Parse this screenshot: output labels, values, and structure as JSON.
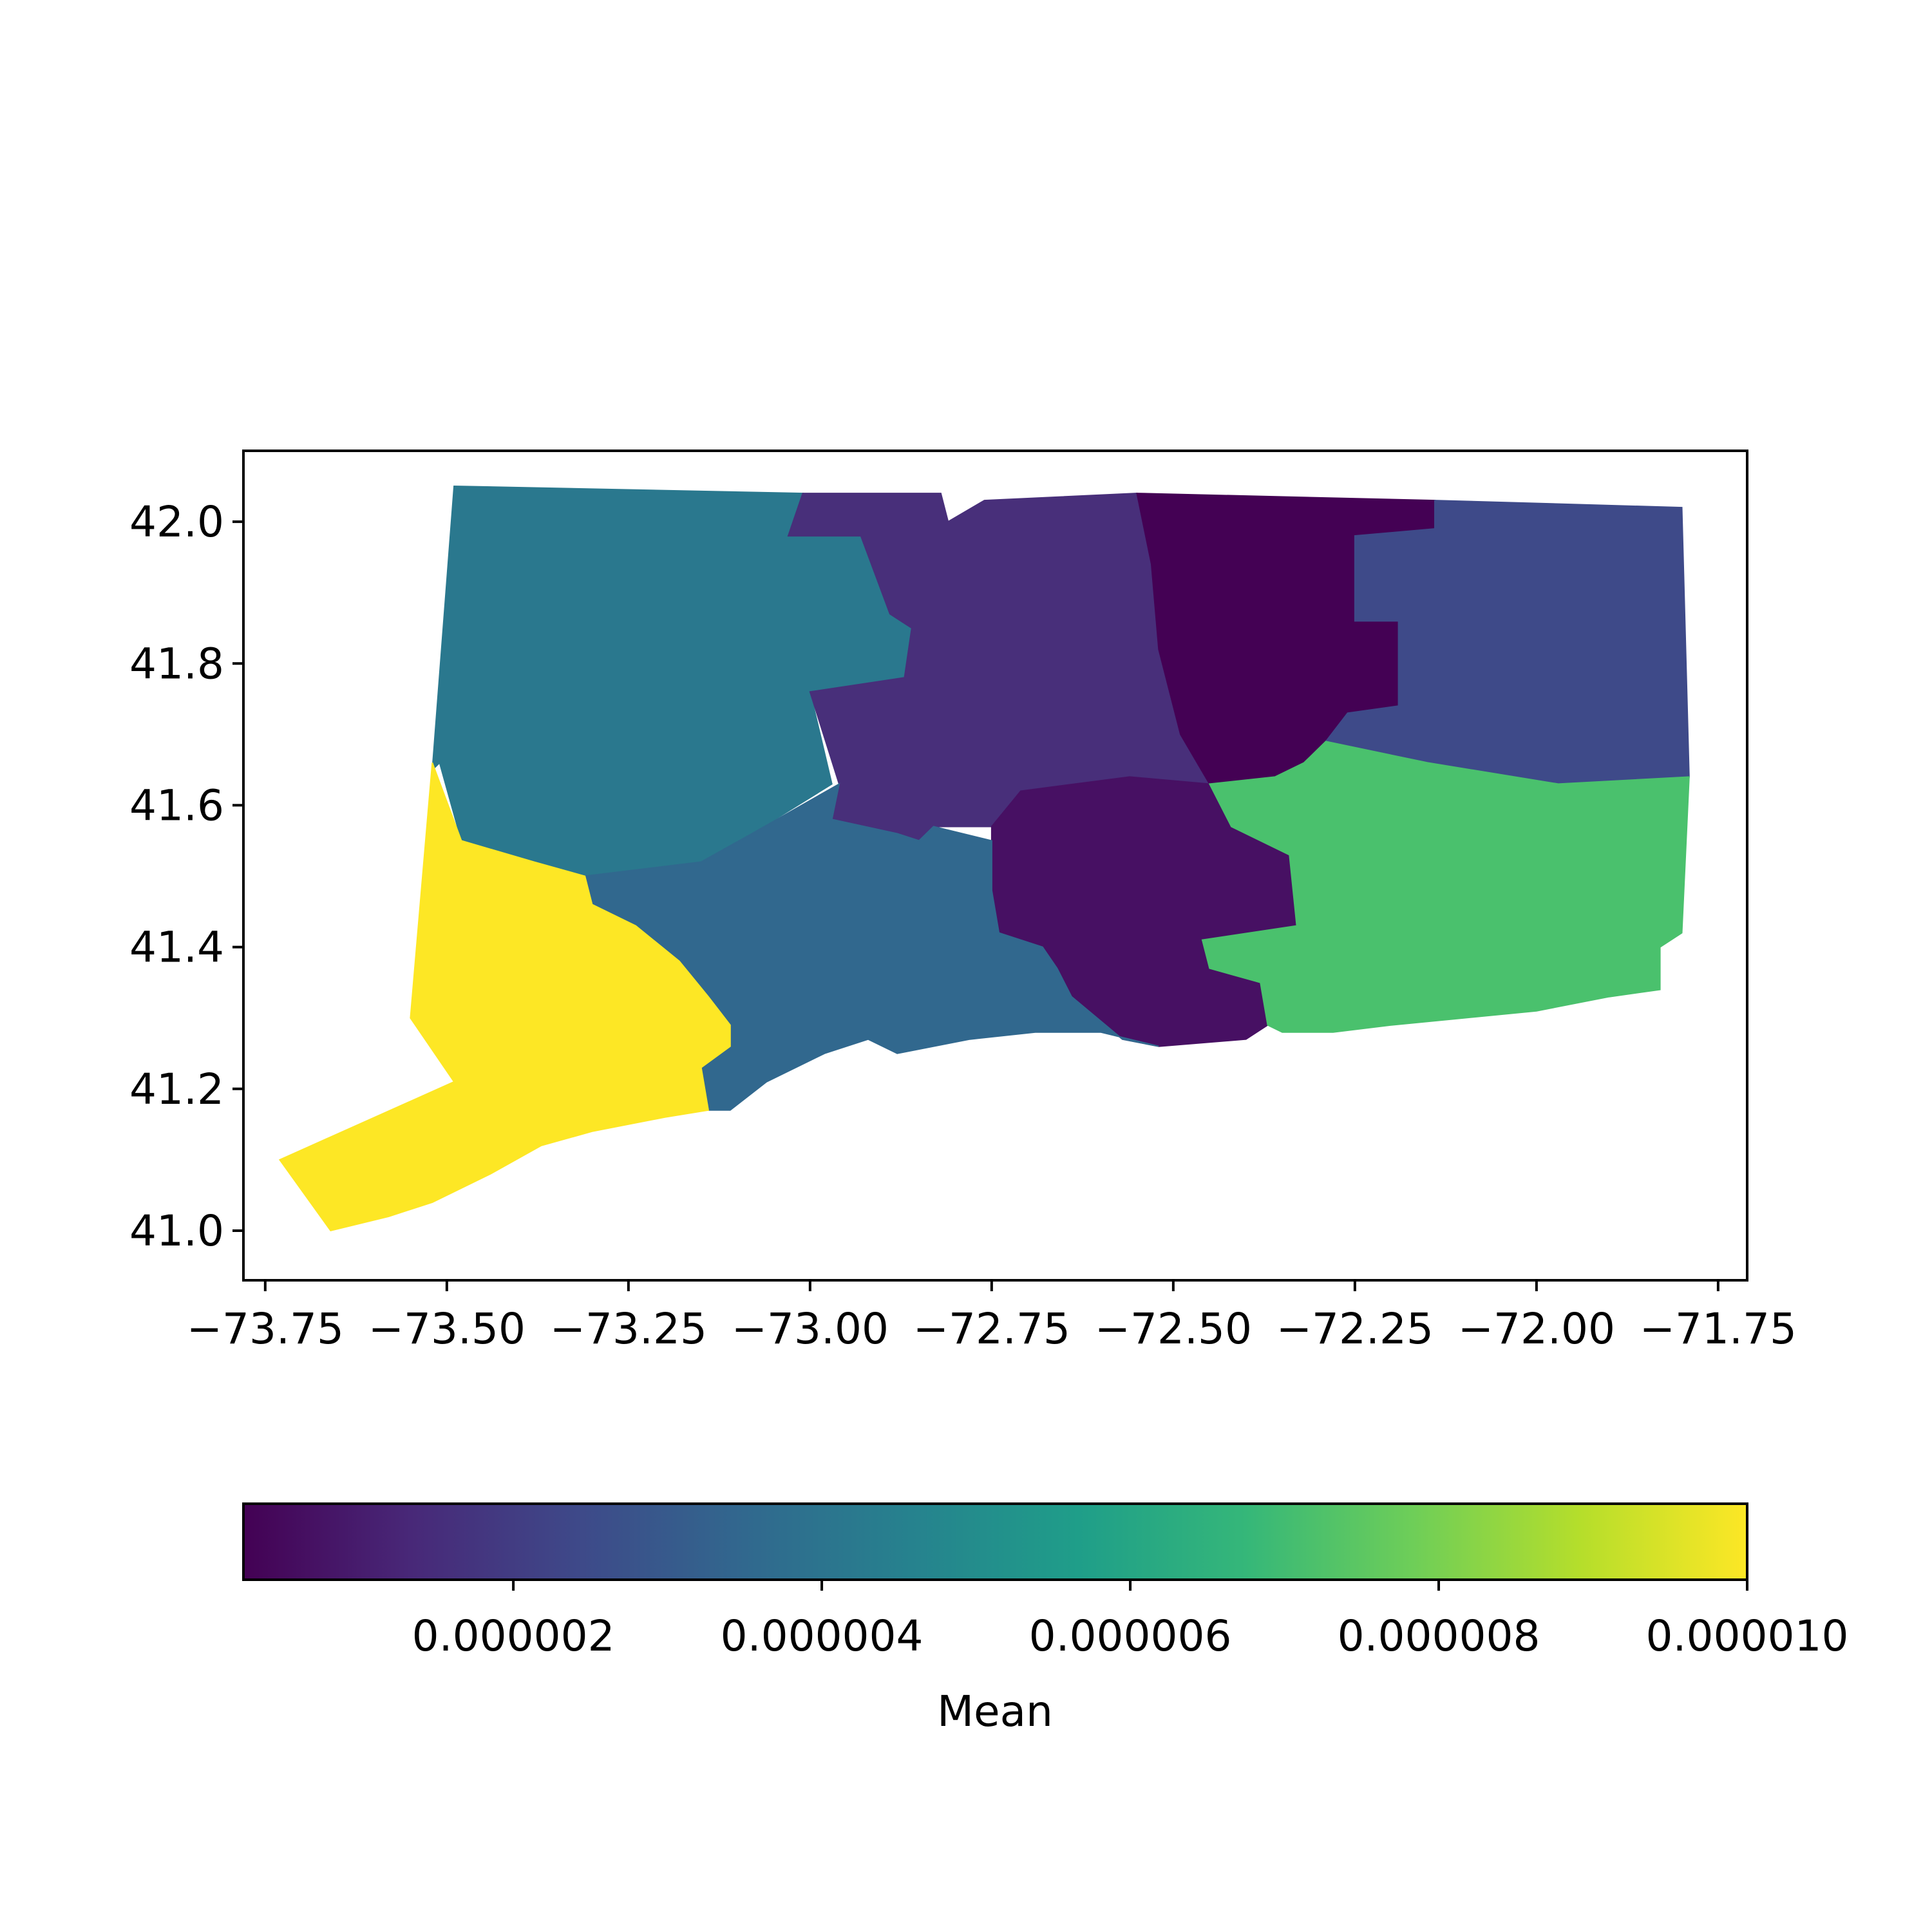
{
  "chart_data": {
    "type": "choropleth",
    "title": "",
    "x_axis": {
      "label": "",
      "range": [
        -73.78,
        -71.71
      ],
      "ticks": [
        -73.75,
        -73.5,
        -73.25,
        -73.0,
        -72.75,
        -72.5,
        -72.25,
        -72.0,
        -71.75
      ],
      "tick_labels": [
        "−73.75",
        "−73.50",
        "−73.25",
        "−73.00",
        "−72.75",
        "−72.50",
        "−72.25",
        "−72.00",
        "−71.75"
      ]
    },
    "y_axis": {
      "label": "",
      "range": [
        40.93,
        42.1
      ],
      "ticks": [
        41.0,
        41.2,
        41.4,
        41.6,
        41.8,
        42.0
      ],
      "tick_labels": [
        "41.0",
        "41.2",
        "41.4",
        "41.6",
        "41.8",
        "42.0"
      ]
    },
    "grid": false,
    "regions": [
      {
        "value": 4e-06,
        "color": "#2a788e",
        "lonlat": [
          [
            -73.49,
            42.05
          ],
          [
            -73.01,
            42.04
          ],
          [
            -73.03,
            41.98
          ],
          [
            -72.93,
            41.98
          ],
          [
            -72.89,
            41.87
          ],
          [
            -72.86,
            41.85
          ],
          [
            -72.87,
            41.78
          ],
          [
            -73.0,
            41.76
          ],
          [
            -72.97,
            41.63
          ],
          [
            -73.08,
            41.56
          ],
          [
            -73.15,
            41.52
          ],
          [
            -73.31,
            41.5
          ],
          [
            -73.38,
            41.52
          ],
          [
            -73.48,
            41.55
          ],
          [
            -73.51,
            41.66
          ],
          [
            -73.52,
            41.65
          ]
        ]
      },
      {
        "value": 2e-06,
        "color": "#482f7a",
        "lonlat": [
          [
            -73.01,
            42.04
          ],
          [
            -72.82,
            42.04
          ],
          [
            -72.81,
            42.0
          ],
          [
            -72.76,
            42.03
          ],
          [
            -72.55,
            42.04
          ],
          [
            -72.53,
            41.94
          ],
          [
            -72.52,
            41.82
          ],
          [
            -72.49,
            41.7
          ],
          [
            -72.45,
            41.63
          ],
          [
            -72.56,
            41.64
          ],
          [
            -72.71,
            41.62
          ],
          [
            -72.75,
            41.57
          ],
          [
            -72.83,
            41.57
          ],
          [
            -72.85,
            41.55
          ],
          [
            -72.88,
            41.56
          ],
          [
            -72.97,
            41.58
          ],
          [
            -72.96,
            41.63
          ],
          [
            -73.0,
            41.76
          ],
          [
            -72.87,
            41.78
          ],
          [
            -72.86,
            41.85
          ],
          [
            -72.89,
            41.87
          ],
          [
            -72.93,
            41.98
          ],
          [
            -73.03,
            41.98
          ]
        ]
      },
      {
        "value": 5e-07,
        "color": "#440154",
        "lonlat": [
          [
            -72.55,
            42.04
          ],
          [
            -72.14,
            42.03
          ],
          [
            -72.14,
            41.99
          ],
          [
            -72.25,
            41.98
          ],
          [
            -72.25,
            41.86
          ],
          [
            -72.19,
            41.86
          ],
          [
            -72.19,
            41.74
          ],
          [
            -72.26,
            41.73
          ],
          [
            -72.29,
            41.69
          ],
          [
            -72.32,
            41.66
          ],
          [
            -72.36,
            41.64
          ],
          [
            -72.38,
            41.62
          ],
          [
            -72.4,
            41.59
          ],
          [
            -72.45,
            41.63
          ],
          [
            -72.49,
            41.7
          ],
          [
            -72.52,
            41.82
          ],
          [
            -72.53,
            41.94
          ]
        ]
      },
      {
        "value": 2.2e-06,
        "color": "#3e4a89",
        "lonlat": [
          [
            -72.14,
            42.03
          ],
          [
            -71.8,
            42.02
          ],
          [
            -71.79,
            41.64
          ],
          [
            -71.97,
            41.63
          ],
          [
            -72.15,
            41.66
          ],
          [
            -72.29,
            41.69
          ],
          [
            -72.26,
            41.73
          ],
          [
            -72.19,
            41.74
          ],
          [
            -72.19,
            41.86
          ],
          [
            -72.25,
            41.86
          ],
          [
            -72.25,
            41.98
          ],
          [
            -72.14,
            41.99
          ]
        ]
      },
      {
        "value": 1.2e-06,
        "color": "#471063",
        "lonlat": [
          [
            -72.75,
            41.57
          ],
          [
            -72.71,
            41.62
          ],
          [
            -72.56,
            41.64
          ],
          [
            -72.45,
            41.63
          ],
          [
            -72.42,
            41.57
          ],
          [
            -72.34,
            41.53
          ],
          [
            -72.33,
            41.43
          ],
          [
            -72.46,
            41.41
          ],
          [
            -72.45,
            41.37
          ],
          [
            -72.38,
            41.35
          ],
          [
            -72.37,
            41.29
          ],
          [
            -72.4,
            41.27
          ],
          [
            -72.52,
            41.26
          ],
          [
            -72.57,
            41.27
          ],
          [
            -72.64,
            41.33
          ],
          [
            -72.66,
            41.37
          ],
          [
            -72.68,
            41.4
          ],
          [
            -72.74,
            41.42
          ],
          [
            -72.75,
            41.48
          ],
          [
            -72.75,
            41.55
          ]
        ]
      },
      {
        "value": 3.2e-06,
        "color": "#31688e",
        "lonlat": [
          [
            -73.08,
            41.56
          ],
          [
            -73.15,
            41.52
          ],
          [
            -73.31,
            41.5
          ],
          [
            -73.3,
            41.46
          ],
          [
            -73.24,
            41.43
          ],
          [
            -73.18,
            41.38
          ],
          [
            -73.14,
            41.33
          ],
          [
            -73.11,
            41.29
          ],
          [
            -73.11,
            41.26
          ],
          [
            -73.15,
            41.23
          ],
          [
            -73.14,
            41.17
          ],
          [
            -73.11,
            41.17
          ],
          [
            -73.06,
            41.21
          ],
          [
            -72.98,
            41.25
          ],
          [
            -72.92,
            41.27
          ],
          [
            -72.88,
            41.25
          ],
          [
            -72.78,
            41.27
          ],
          [
            -72.69,
            41.28
          ],
          [
            -72.6,
            41.28
          ],
          [
            -72.52,
            41.26
          ],
          [
            -72.57,
            41.27
          ],
          [
            -72.64,
            41.33
          ],
          [
            -72.66,
            41.37
          ],
          [
            -72.68,
            41.4
          ],
          [
            -72.74,
            41.42
          ],
          [
            -72.75,
            41.48
          ],
          [
            -72.75,
            41.55
          ],
          [
            -72.83,
            41.57
          ],
          [
            -72.85,
            41.55
          ],
          [
            -72.88,
            41.56
          ],
          [
            -72.97,
            41.58
          ],
          [
            -72.96,
            41.63
          ],
          [
            -73.08,
            41.56
          ]
        ]
      },
      {
        "value": 7.2e-06,
        "color": "#4ac16d",
        "lonlat": [
          [
            -72.45,
            41.63
          ],
          [
            -72.36,
            41.64
          ],
          [
            -72.32,
            41.66
          ],
          [
            -72.29,
            41.69
          ],
          [
            -72.15,
            41.66
          ],
          [
            -71.97,
            41.63
          ],
          [
            -71.79,
            41.64
          ],
          [
            -71.8,
            41.42
          ],
          [
            -71.83,
            41.4
          ],
          [
            -71.83,
            41.34
          ],
          [
            -71.9,
            41.33
          ],
          [
            -72.0,
            41.31
          ],
          [
            -72.1,
            41.3
          ],
          [
            -72.2,
            41.29
          ],
          [
            -72.28,
            41.28
          ],
          [
            -72.35,
            41.28
          ],
          [
            -72.37,
            41.29
          ],
          [
            -72.38,
            41.35
          ],
          [
            -72.45,
            41.37
          ],
          [
            -72.46,
            41.41
          ],
          [
            -72.33,
            41.43
          ],
          [
            -72.34,
            41.53
          ],
          [
            -72.42,
            41.57
          ]
        ]
      },
      {
        "value": 1e-05,
        "color": "#fde725",
        "lonlat": [
          [
            -73.52,
            41.66
          ],
          [
            -73.55,
            41.3
          ],
          [
            -73.49,
            41.21
          ],
          [
            -73.73,
            41.1
          ],
          [
            -73.66,
            41.0
          ],
          [
            -73.58,
            41.02
          ],
          [
            -73.52,
            41.04
          ],
          [
            -73.44,
            41.08
          ],
          [
            -73.37,
            41.12
          ],
          [
            -73.3,
            41.14
          ],
          [
            -73.2,
            41.16
          ],
          [
            -73.14,
            41.17
          ],
          [
            -73.15,
            41.23
          ],
          [
            -73.11,
            41.26
          ],
          [
            -73.11,
            41.29
          ],
          [
            -73.14,
            41.33
          ],
          [
            -73.18,
            41.38
          ],
          [
            -73.24,
            41.43
          ],
          [
            -73.3,
            41.46
          ],
          [
            -73.31,
            41.5
          ],
          [
            -73.38,
            41.52
          ],
          [
            -73.48,
            41.55
          ]
        ]
      }
    ],
    "colorbar": {
      "label": "Mean",
      "colormap": "viridis",
      "orientation": "horizontal",
      "location": "bottom",
      "range": [
        2.5e-07,
        1e-05
      ],
      "ticks": [
        2e-06,
        4e-06,
        6e-06,
        8e-06,
        1e-05
      ],
      "tick_labels": [
        "0.000002",
        "0.000004",
        "0.000006",
        "0.000008",
        "0.000010"
      ],
      "stops": [
        "#440154",
        "#482878",
        "#3e4989",
        "#31688e",
        "#26828e",
        "#1f9e89",
        "#35b779",
        "#6ece58",
        "#b5de2b",
        "#fde725"
      ]
    }
  }
}
